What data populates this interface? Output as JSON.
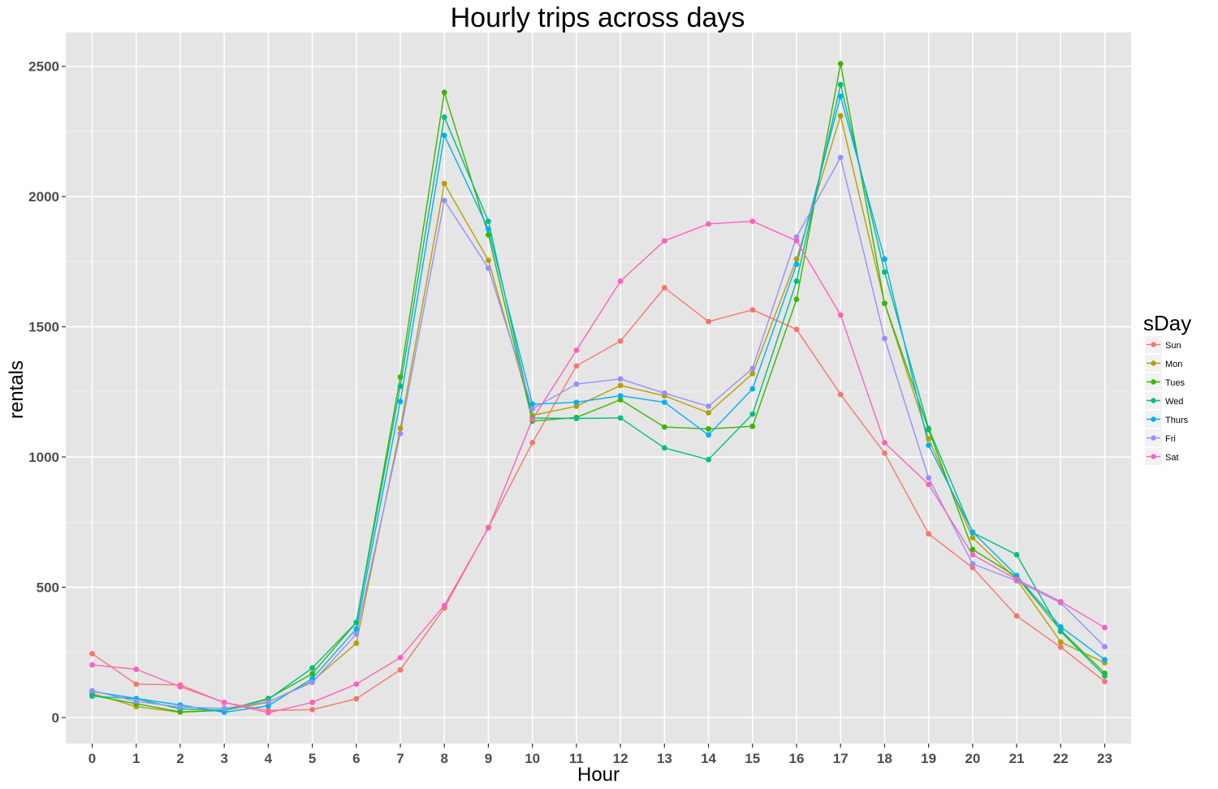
{
  "chart_data": {
    "type": "line",
    "title": "Hourly trips across days",
    "xlabel": "Hour",
    "ylabel": "rentals",
    "categories": [
      "0",
      "1",
      "2",
      "3",
      "4",
      "5",
      "6",
      "7",
      "8",
      "9",
      "10",
      "11",
      "12",
      "13",
      "14",
      "15",
      "16",
      "17",
      "18",
      "19",
      "20",
      "21",
      "22",
      "23"
    ],
    "xlim": [
      -0.6,
      23.6
    ],
    "ylim": [
      -100,
      2630
    ],
    "yticks": [
      0,
      500,
      1000,
      1500,
      2000,
      2500
    ],
    "grid": true,
    "legend": {
      "title": "sDay",
      "position": "right"
    },
    "series": [
      {
        "name": "Sun",
        "color": "#F8766D",
        "values": [
          245,
          128,
          125,
          57,
          27,
          30,
          72,
          183,
          420,
          730,
          1055,
          1350,
          1445,
          1650,
          1520,
          1565,
          1490,
          1240,
          1015,
          705,
          575,
          390,
          270,
          138
        ]
      },
      {
        "name": "Mon",
        "color": "#B79F00",
        "values": [
          92,
          42,
          20,
          28,
          58,
          140,
          285,
          1110,
          2050,
          1755,
          1160,
          1195,
          1275,
          1235,
          1170,
          1320,
          1760,
          2310,
          1590,
          1070,
          690,
          530,
          290,
          210
        ]
      },
      {
        "name": "Tues",
        "color": "#39B600",
        "values": [
          85,
          53,
          22,
          27,
          73,
          168,
          365,
          1307,
          2400,
          1853,
          1138,
          1152,
          1220,
          1115,
          1108,
          1118,
          1605,
          2510,
          1590,
          1105,
          645,
          540,
          335,
          170
        ]
      },
      {
        "name": "Wed",
        "color": "#00BF7D",
        "values": [
          82,
          72,
          33,
          28,
          70,
          190,
          365,
          1272,
          2305,
          1905,
          1150,
          1148,
          1150,
          1035,
          990,
          1165,
          1675,
          2430,
          1710,
          1110,
          710,
          625,
          330,
          160
        ]
      },
      {
        "name": "Thurs",
        "color": "#00B0F6",
        "values": [
          100,
          73,
          48,
          20,
          45,
          150,
          340,
          1213,
          2235,
          1875,
          1203,
          1210,
          1235,
          1210,
          1085,
          1262,
          1740,
          2385,
          1760,
          1045,
          712,
          545,
          348,
          222
        ]
      },
      {
        "name": "Fri",
        "color": "#9590FF",
        "values": [
          103,
          62,
          40,
          35,
          60,
          135,
          320,
          1090,
          1985,
          1725,
          1185,
          1280,
          1300,
          1245,
          1195,
          1340,
          1845,
          2150,
          1455,
          920,
          590,
          525,
          440,
          272
        ]
      },
      {
        "name": "Sat",
        "color": "#FF62BC",
        "values": [
          202,
          185,
          118,
          58,
          18,
          58,
          128,
          230,
          430,
          728,
          1145,
          1410,
          1675,
          1830,
          1895,
          1905,
          1830,
          1545,
          1055,
          895,
          625,
          530,
          445,
          345
        ]
      }
    ]
  }
}
